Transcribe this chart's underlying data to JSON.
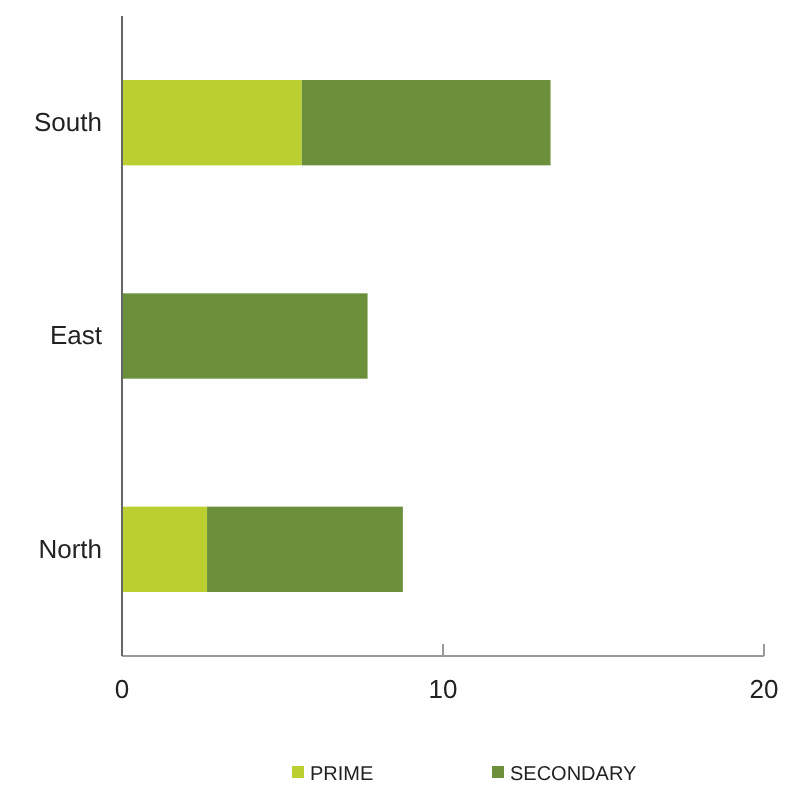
{
  "chart_data": {
    "type": "bar",
    "orientation": "horizontal",
    "stacked": true,
    "categories": [
      "South",
      "East",
      "North"
    ],
    "series": [
      {
        "name": "PRIME",
        "color": "#bccf30",
        "values": [
          5.6,
          0,
          2.65
        ]
      },
      {
        "name": "SECONDARY",
        "color": "#6b8f3b",
        "values": [
          7.75,
          7.65,
          6.1
        ]
      }
    ],
    "xlim": [
      0,
      20
    ],
    "xticks": [
      0,
      10,
      20
    ],
    "grid": false,
    "legend": "bottom"
  }
}
